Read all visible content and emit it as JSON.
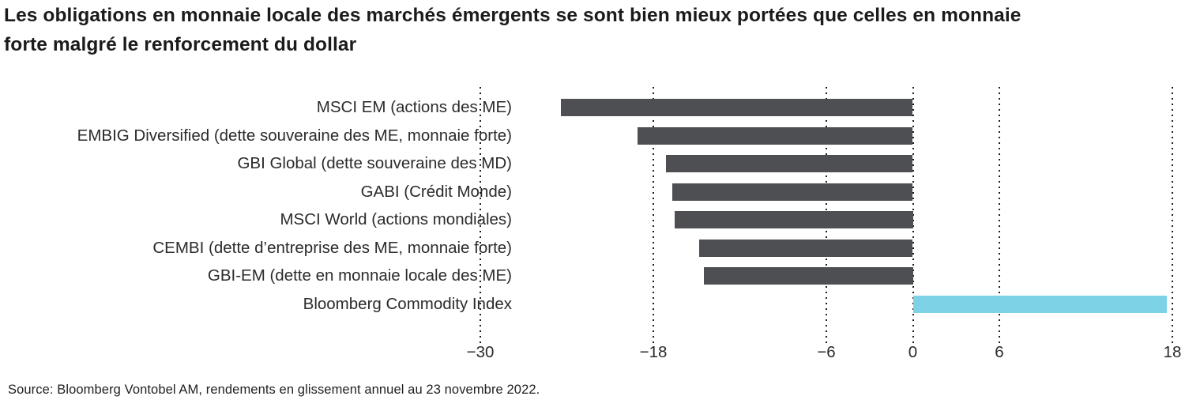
{
  "title": {
    "line1": "Les obligations en monnaie locale des marchés émergents se sont bien mieux portées que celles en monnaie",
    "line2": "forte malgré le renforcement du dollar",
    "full": "Les obligations en monnaie locale des marchés émergents se sont bien mieux portées que celles en monnaie forte malgré le renforcement du dollar"
  },
  "source": "Source: Bloomberg Vontobel AM, rendements en glissement annuel au 23 novembre 2022.",
  "chart_data": {
    "type": "bar",
    "orientation": "horizontal",
    "title": "Les obligations en monnaie locale des marchés émergents se sont bien mieux portées que celles en monnaie forte malgré le renforcement du dollar",
    "categories": [
      "MSCI EM (actions des ME)",
      "EMBIG Diversified (dette souveraine des ME, monnaie forte)",
      "GBI Global (dette souveraine des MD)",
      "GABI (Crédit Monde)",
      "MSCI World (actions mondiales)",
      "CEMBI (dette d’entreprise des ME, monnaie forte)",
      "GBI-EM (dette en monnaie locale des ME)",
      "Bloomberg Commodity Index"
    ],
    "values": [
      -24.4,
      -19.1,
      -17.1,
      -16.7,
      -16.5,
      -14.8,
      -14.5,
      17.6
    ],
    "colors": [
      "#4D4F52",
      "#4D4F52",
      "#4D4F52",
      "#4D4F52",
      "#4D4F52",
      "#4D4F52",
      "#4D4F52",
      "#7DD2E6"
    ],
    "bar_color_negative": "#4D4F52",
    "bar_color_positive": "#7DD2E6",
    "xticks": [
      {
        "value": -30,
        "label": "−30"
      },
      {
        "value": -18,
        "label": "−18"
      },
      {
        "value": -6,
        "label": "−6"
      },
      {
        "value": 0,
        "label": "0"
      },
      {
        "value": 6,
        "label": "6"
      },
      {
        "value": 18,
        "label": "18"
      }
    ],
    "xlabel": "",
    "ylabel": "",
    "xlim": [
      -30,
      18
    ],
    "grid": "dotted-vertical",
    "legend": "none",
    "unit": "percent"
  }
}
